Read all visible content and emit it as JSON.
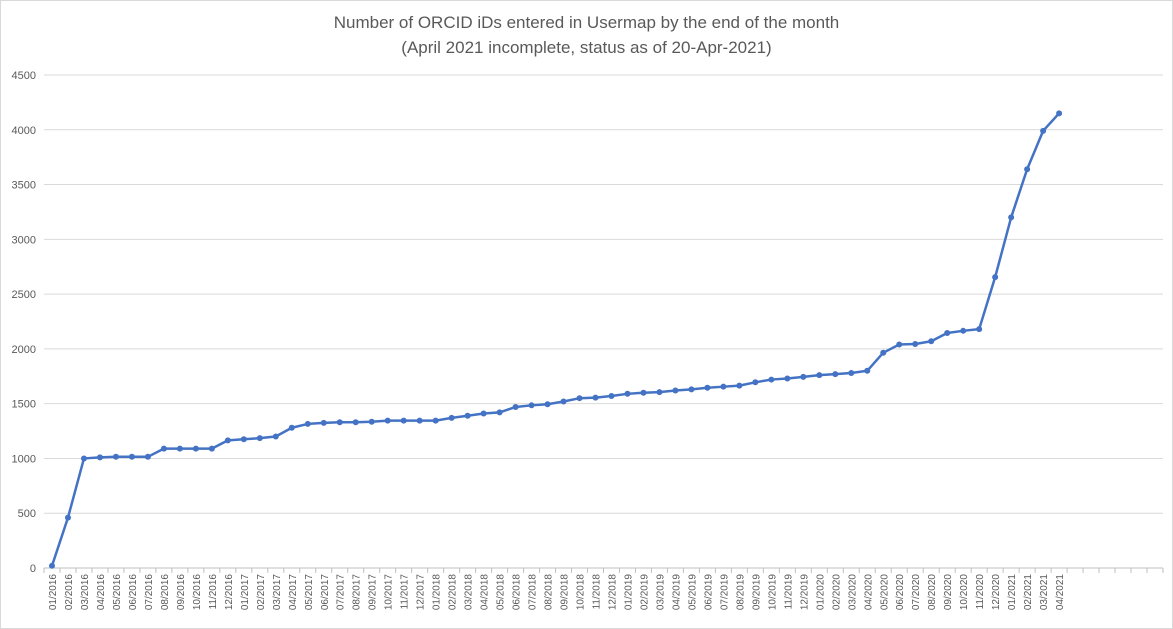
{
  "chart_data": {
    "type": "line",
    "title": "Number of ORCID iDs entered in Usermap by the end of the month",
    "subtitle": "(April 2021 incomplete, status as of 20-Apr-2021)",
    "xlabel": "",
    "ylabel": "",
    "ylim": [
      0,
      4500
    ],
    "yticks": [
      0,
      500,
      1000,
      1500,
      2000,
      2500,
      3000,
      3500,
      4000,
      4500
    ],
    "grid": true,
    "legend": "none",
    "series_color": "#4472c4",
    "categories": [
      "01/2016",
      "02/2016",
      "03/2016",
      "04/2016",
      "05/2016",
      "06/2016",
      "07/2016",
      "08/2016",
      "09/2016",
      "10/2016",
      "11/2016",
      "12/2016",
      "01/2017",
      "02/2017",
      "03/2017",
      "04/2017",
      "05/2017",
      "06/2017",
      "07/2017",
      "08/2017",
      "09/2017",
      "10/2017",
      "11/2017",
      "12/2017",
      "01/2018",
      "02/2018",
      "03/2018",
      "04/2018",
      "05/2018",
      "06/2018",
      "07/2018",
      "08/2018",
      "09/2018",
      "10/2018",
      "11/2018",
      "12/2018",
      "01/2019",
      "02/2019",
      "03/2019",
      "04/2019",
      "05/2019",
      "06/2019",
      "07/2019",
      "08/2019",
      "09/2019",
      "10/2019",
      "11/2019",
      "12/2019",
      "01/2020",
      "02/2020",
      "03/2020",
      "04/2020",
      "05/2020",
      "06/2020",
      "07/2020",
      "08/2020",
      "09/2020",
      "10/2020",
      "11/2020",
      "12/2020",
      "01/2021",
      "02/2021",
      "03/2021",
      "04/2021"
    ],
    "series": [
      {
        "values": [
          20,
          460,
          1000,
          1010,
          1015,
          1015,
          1015,
          1090,
          1090,
          1090,
          1090,
          1165,
          1175,
          1185,
          1200,
          1280,
          1315,
          1325,
          1330,
          1330,
          1335,
          1345,
          1345,
          1345,
          1345,
          1370,
          1390,
          1410,
          1420,
          1470,
          1485,
          1495,
          1520,
          1550,
          1555,
          1570,
          1590,
          1600,
          1605,
          1620,
          1630,
          1645,
          1655,
          1665,
          1695,
          1720,
          1730,
          1745,
          1760,
          1770,
          1780,
          1800,
          1965,
          2040,
          2045,
          2070,
          2145,
          2165,
          2180,
          2655,
          3200,
          3640,
          3990,
          4150
        ]
      }
    ],
    "empty_slots_after_data": 6
  }
}
